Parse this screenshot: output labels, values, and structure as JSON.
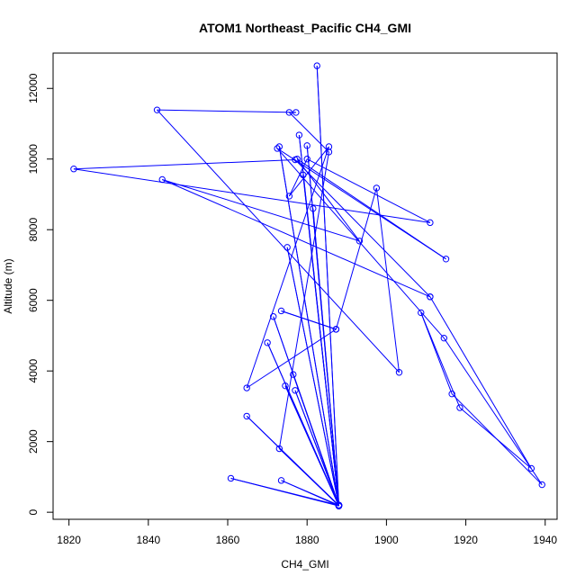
{
  "chart_data": {
    "type": "scatter",
    "title": "ATOM1 Northeast_Pacific CH4_GMI",
    "xlabel": "CH4_GMI",
    "ylabel": "Altitude (m)",
    "xlim": [
      1816,
      1943
    ],
    "ylim": [
      -200,
      13000
    ],
    "x_ticks": [
      1820,
      1840,
      1860,
      1880,
      1900,
      1920,
      1940
    ],
    "y_ticks": [
      0,
      2000,
      4000,
      6000,
      8000,
      10000,
      12000
    ],
    "x_tick_labels": [
      "1820",
      "1840",
      "1860",
      "1880",
      "1900",
      "1920",
      "1940"
    ],
    "y_tick_labels": [
      "0",
      "2000",
      "4000",
      "6000",
      "8000",
      "10000",
      "12000"
    ],
    "grid": false,
    "series_color": "#0000ff",
    "marker": "open-circle-connected-by-lines",
    "series": [
      {
        "x": [
          1888,
          1860.8,
          1888,
          1864.8,
          1888,
          1873.5,
          1888,
          1874.5,
          1888,
          1876.5,
          1888,
          1877,
          1888,
          1878,
          1888,
          1882.5,
          1888,
          1881.5,
          1888,
          1880,
          1888,
          1879,
          1888,
          1873,
          1888,
          1871.5,
          1888,
          1870,
          1888,
          1875,
          1888,
          1873,
          1885.5,
          1875.5,
          1877.2,
          1842.2,
          1903.2,
          1897.5,
          1887.3,
          1873.5,
          1887.3,
          1864.8,
          1885.5,
          1875.5,
          1880,
          1911,
          1821.2,
          1877,
          1911,
          1843.5,
          1893.2,
          1877.5,
          1915,
          1872.5,
          1914.5,
          1939.2,
          1916.5,
          1908.7,
          1918.5,
          1936.5,
          1911
        ],
        "y": [
          180,
          960,
          200,
          2720,
          180,
          900,
          200,
          3580,
          180,
          3900,
          200,
          3450,
          190,
          10680,
          180,
          12640,
          200,
          8600,
          190,
          10380,
          180,
          9550,
          200,
          10350,
          180,
          5540,
          200,
          4800,
          180,
          7500,
          190,
          1800,
          10200,
          11320,
          11320,
          11390,
          3960,
          9180,
          5180,
          5700,
          5180,
          3520,
          10350,
          8950,
          10000,
          8200,
          9720,
          9980,
          6100,
          9420,
          7680,
          10000,
          7170,
          10300,
          4930,
          780,
          3350,
          5650,
          2960,
          1240,
          6100
        ]
      }
    ]
  }
}
